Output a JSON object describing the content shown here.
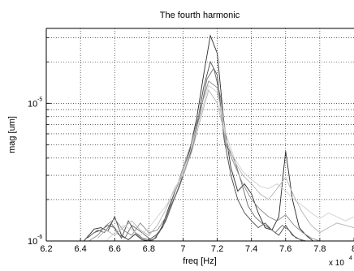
{
  "chart_data": {
    "type": "line",
    "title": "The fourth harmonic",
    "xlabel": "freq [Hz]",
    "ylabel": "mag [um]",
    "x_scale_label": "x 10",
    "x_scale_exponent": "4",
    "x_scale": "linear",
    "y_scale": "log",
    "xlim": [
      6.2,
      8.0
    ],
    "ylim": [
      1e-06,
      3.5e-05
    ],
    "grid": true,
    "grid_style": "dotted",
    "legend": "none",
    "x_ticks": [
      6.2,
      6.4,
      6.6,
      6.8,
      7.0,
      7.2,
      7.4,
      7.6,
      7.8,
      8.0
    ],
    "x_tick_labels": [
      "6.2",
      "6.4",
      "6.6",
      "6.8",
      "7",
      "7.2",
      "7.4",
      "7.6",
      "7.8",
      "8"
    ],
    "y_ticks_labeled": [
      {
        "value": 1e-06,
        "base": "10",
        "exp": "-6"
      },
      {
        "value": 1e-05,
        "base": "10",
        "exp": "-5"
      }
    ],
    "y_minor_ticks": [
      2e-06,
      3e-06,
      4e-06,
      5e-06,
      6e-06,
      7e-06,
      8e-06,
      9e-06,
      2e-05,
      3e-05
    ],
    "series": [
      {
        "color": "#2b2b2b",
        "x": [
          6.42,
          6.48,
          6.52,
          6.56,
          6.6,
          6.64,
          6.68,
          6.72,
          6.76,
          6.8,
          6.84,
          6.88,
          6.92,
          6.96,
          7.0,
          7.04,
          7.08,
          7.12,
          7.16,
          7.2,
          7.24,
          7.28,
          7.32,
          7.36,
          7.4,
          7.44,
          7.48,
          7.52,
          7.56,
          7.6,
          7.64,
          7.68,
          7.72,
          7.76
        ],
        "y": [
          1e-06,
          1.22e-06,
          1.25e-06,
          1.18e-06,
          1.5e-06,
          1.1e-06,
          1.02e-06,
          1.12e-06,
          1.02e-06,
          1e-06,
          1.05e-06,
          1.3e-06,
          1.8e-06,
          2.4e-06,
          3.2e-06,
          4.6e-06,
          7.8e-06,
          1.6e-05,
          3.1e-05,
          2.3e-05,
          7e-06,
          3.4e-06,
          2.3e-06,
          2.6e-06,
          2.2e-06,
          1.6e-06,
          1.25e-06,
          1.2e-06,
          1.5e-06,
          4.5e-06,
          2e-06,
          1.25e-06,
          1.1e-06,
          1e-06
        ]
      },
      {
        "color": "#4a4a4a",
        "x": [
          6.44,
          6.48,
          6.52,
          6.56,
          6.6,
          6.64,
          6.68,
          6.72,
          6.76,
          6.8,
          6.84,
          6.88,
          6.92,
          6.96,
          7.0,
          7.04,
          7.08,
          7.12,
          7.16,
          7.2,
          7.24,
          7.28,
          7.32,
          7.36,
          7.4,
          7.44,
          7.48,
          7.52,
          7.56,
          7.6,
          7.64,
          7.7
        ],
        "y": [
          1.05e-06,
          1.15e-06,
          1.2e-06,
          1.3e-06,
          1.25e-06,
          1.05e-06,
          1.4e-06,
          1.15e-06,
          1.05e-06,
          1.02e-06,
          1.1e-06,
          1.25e-06,
          1.7e-06,
          2.2e-06,
          3e-06,
          4.2e-06,
          6.8e-06,
          1.3e-05,
          2e-05,
          1.6e-05,
          5.5e-06,
          3e-06,
          2e-06,
          1.6e-06,
          1.4e-06,
          1.25e-06,
          1.35e-06,
          1.2e-06,
          1.1e-06,
          1.3e-06,
          1.1e-06,
          1e-06
        ]
      },
      {
        "color": "#6a6a6a",
        "x": [
          6.46,
          6.5,
          6.54,
          6.58,
          6.62,
          6.66,
          6.7,
          6.74,
          6.78,
          6.82,
          6.86,
          6.9,
          6.94,
          6.98,
          7.02,
          7.06,
          7.1,
          7.14,
          7.18,
          7.22,
          7.26,
          7.3,
          7.34,
          7.38,
          7.42,
          7.46,
          7.5,
          7.54,
          7.58,
          7.62,
          7.66,
          7.72
        ],
        "y": [
          1.1e-06,
          1.2e-06,
          1.15e-06,
          1.35e-06,
          1.12e-06,
          1.05e-06,
          1.3e-06,
          1.2e-06,
          1.1e-06,
          1e-06,
          1.15e-06,
          1.4e-06,
          1.9e-06,
          2.5e-06,
          3.5e-06,
          5e-06,
          8.5e-06,
          1.5e-05,
          1.8e-05,
          1.1e-05,
          4.8e-06,
          3.9e-06,
          2.7e-06,
          1.8e-06,
          1.5e-06,
          1.35e-06,
          1.25e-06,
          1.15e-06,
          1.3e-06,
          1.2e-06,
          1.05e-06,
          1e-06
        ]
      },
      {
        "color": "#8c8c8c",
        "x": [
          6.45,
          6.5,
          6.55,
          6.6,
          6.65,
          6.7,
          6.75,
          6.8,
          6.85,
          6.9,
          6.95,
          7.0,
          7.05,
          7.1,
          7.15,
          7.2,
          7.25,
          7.3,
          7.35,
          7.4,
          7.45,
          7.5,
          7.55,
          7.6,
          7.65,
          7.7,
          7.75,
          7.8
        ],
        "y": [
          1e-06,
          1.1e-06,
          1.3e-06,
          1.45e-06,
          1.2e-06,
          1.1e-06,
          1.35e-06,
          1.15e-06,
          1.2e-06,
          1.5e-06,
          2.2e-06,
          3.4e-06,
          5.2e-06,
          9e-06,
          1.45e-05,
          1.3e-05,
          5e-06,
          3.6e-06,
          2.6e-06,
          2e-06,
          1.7e-06,
          1.5e-06,
          1.4e-06,
          1.55e-06,
          1.3e-06,
          1.15e-06,
          1.05e-06,
          1e-06
        ]
      },
      {
        "color": "#b4b4b4",
        "x": [
          6.5,
          6.55,
          6.6,
          6.65,
          6.7,
          6.75,
          6.8,
          6.85,
          6.9,
          6.95,
          7.0,
          7.05,
          7.1,
          7.15,
          7.2,
          7.25,
          7.3,
          7.35,
          7.4,
          7.45,
          7.5,
          7.55,
          7.6,
          7.65,
          7.7,
          7.75,
          7.8,
          7.85,
          7.9,
          7.95,
          8.0
        ],
        "y": [
          1.05e-06,
          1.2e-06,
          1.1e-06,
          1.25e-06,
          1.4e-06,
          1.2e-06,
          1.1e-06,
          1.3e-06,
          1.7e-06,
          2.4e-06,
          3e-06,
          4.4e-06,
          7.5e-06,
          1.25e-05,
          1e-05,
          5.5e-06,
          3.8e-06,
          3e-06,
          2.6e-06,
          2.2e-06,
          2e-06,
          2.4e-06,
          2.9e-06,
          2.1e-06,
          1.6e-06,
          1.3e-06,
          1.15e-06,
          1.25e-06,
          1.35e-06,
          1.3e-06,
          1.25e-06
        ]
      },
      {
        "color": "#d0d0d0",
        "x": [
          6.55,
          6.6,
          6.65,
          6.7,
          6.75,
          6.8,
          6.85,
          6.9,
          6.95,
          7.0,
          7.05,
          7.1,
          7.15,
          7.2,
          7.25,
          7.3,
          7.35,
          7.4,
          7.45,
          7.5,
          7.55,
          7.6,
          7.65,
          7.7,
          7.75,
          7.8,
          7.85,
          7.9,
          7.95,
          8.0
        ],
        "y": [
          1e-06,
          1.15e-06,
          1.3e-06,
          1.2e-06,
          1.1e-06,
          1.25e-06,
          1.5e-06,
          1.8e-06,
          2.3e-06,
          3.2e-06,
          4.8e-06,
          8e-06,
          1.35e-05,
          1.2e-05,
          6e-06,
          4e-06,
          3.2e-06,
          2.8e-06,
          2.5e-06,
          2.4e-06,
          2.6e-06,
          2.3e-06,
          2e-06,
          1.8e-06,
          1.6e-06,
          1.45e-06,
          1.6e-06,
          1.5e-06,
          1.4e-06,
          1.5e-06
        ]
      }
    ]
  }
}
